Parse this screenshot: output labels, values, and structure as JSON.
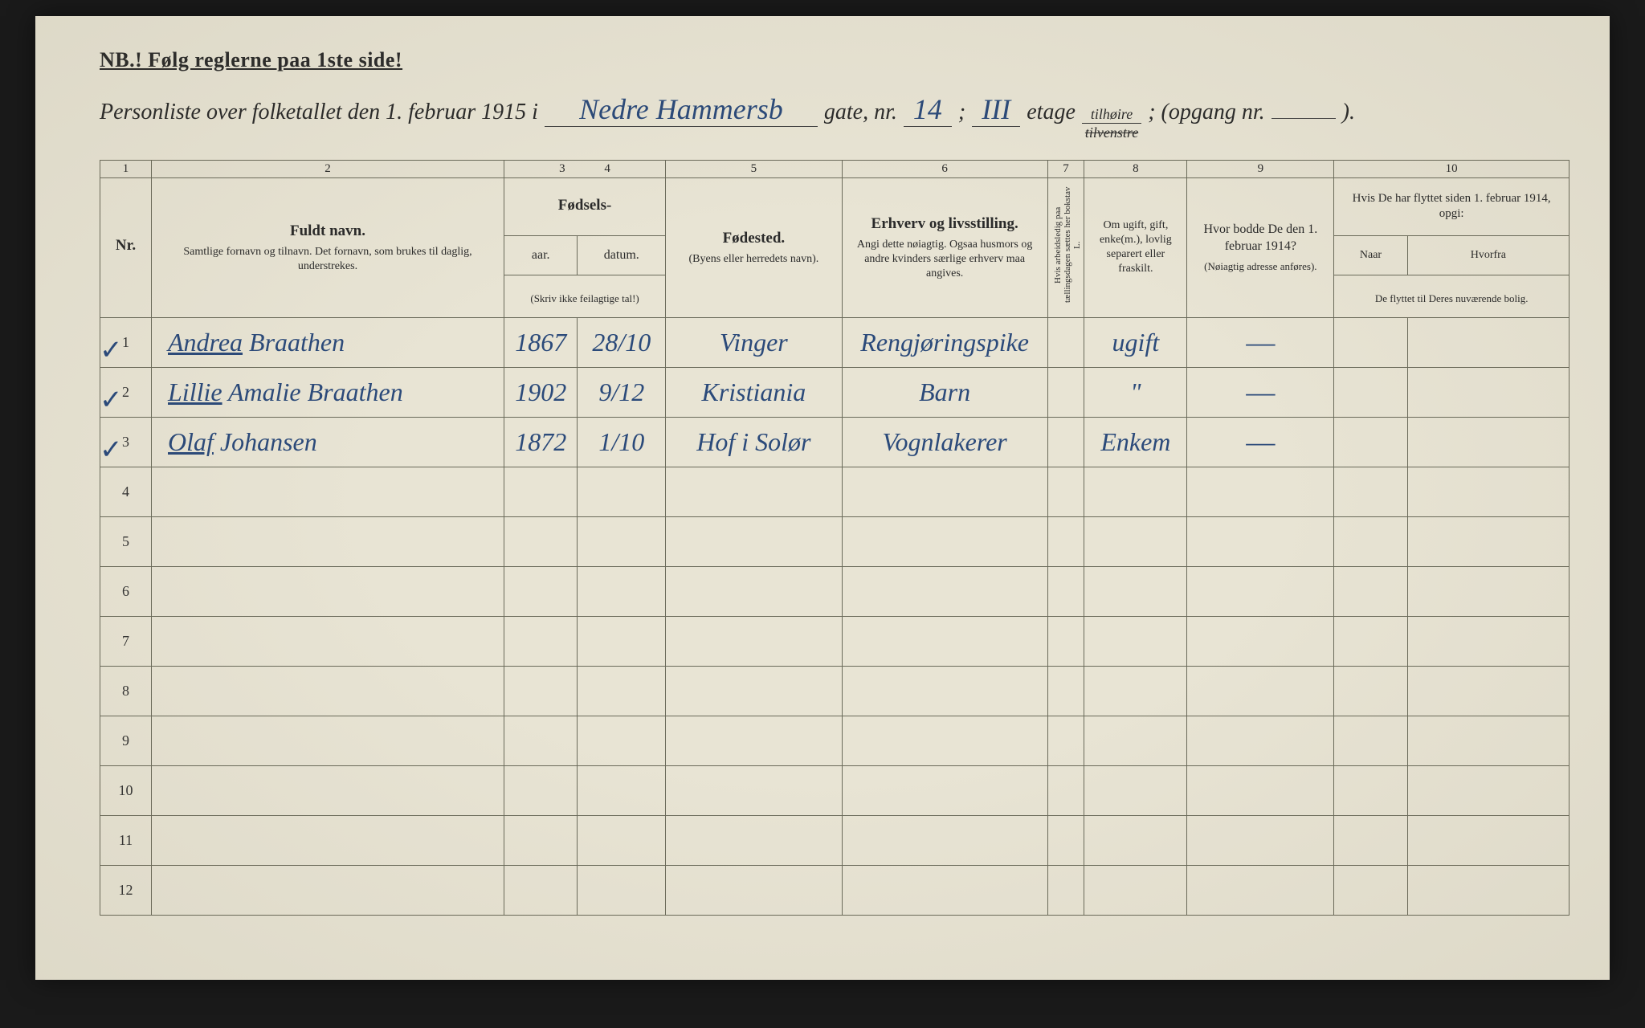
{
  "colors": {
    "paper": "#e8e4d4",
    "ink_print": "#2a2a2a",
    "ink_handwriting": "#2b4a7a",
    "rule_lines": "#6a6a5a",
    "background": "#1a1a1a"
  },
  "header": {
    "nb_line": "NB.! Følg reglerne paa 1ste side!",
    "title_prefix": "Personliste over folketallet den 1. februar 1915 i",
    "street": "Nedre Hammersb",
    "gate_label": "gate, nr.",
    "street_nr": "14",
    "semicolon": ";",
    "etage_value": "III",
    "etage_label": "etage",
    "fraction_top": "tilhøire",
    "fraction_bot": "tilvenstre",
    "opgang_label": "; (opgang nr.",
    "opgang_value": "",
    "closing": ")."
  },
  "columns": {
    "nums": [
      "1",
      "2",
      "3",
      "4",
      "5",
      "6",
      "7",
      "8",
      "9",
      "10"
    ],
    "c1": {
      "label": "Nr."
    },
    "c2": {
      "main": "Fuldt navn.",
      "sub": "Samtlige fornavn og tilnavn. Det fornavn, som brukes til daglig, understrekes."
    },
    "c34_group": "Fødsels-",
    "c3": {
      "label": "aar."
    },
    "c4": {
      "label": "datum."
    },
    "c34_note": "(Skriv ikke feilagtige tal!)",
    "c5": {
      "main": "Fødested.",
      "sub": "(Byens eller herredets navn)."
    },
    "c6": {
      "main": "Erhverv og livsstilling.",
      "sub": "Angi dette nøiagtig. Ogsaa husmors og andre kvinders særlige erhverv maa angives."
    },
    "c7": {
      "vertical": "Hvis arbeidsledig paa tællingsdagen sættes her bokstav L."
    },
    "c8": {
      "sub": "Om ugift, gift, enke(m.), lovlig separert eller fraskilt."
    },
    "c9": {
      "main": "Hvor bodde De den 1. februar 1914?",
      "sub": "(Nøiagtig adresse anføres)."
    },
    "c10": {
      "main": "Hvis De har flyttet siden 1. februar 1914, opgi:",
      "a": "Naar",
      "b": "Hvorfra",
      "note": "De flyttet til Deres nuværende bolig."
    }
  },
  "rows": [
    {
      "nr": "1",
      "check": true,
      "name": "Andrea Braathen",
      "name_underline": "Andrea",
      "year": "1867",
      "date": "28/10",
      "birthplace": "Vinger",
      "occupation": "Rengjøringspike",
      "col7": "",
      "marital": "ugift",
      "addr1914": "—",
      "moved_when": "",
      "moved_from": ""
    },
    {
      "nr": "2",
      "check": true,
      "name": "Lillie Amalie Braathen",
      "name_underline": "Lillie",
      "year": "1902",
      "date": "9/12",
      "birthplace": "Kristiania",
      "occupation": "Barn",
      "col7": "",
      "marital": "\"",
      "addr1914": "—",
      "moved_when": "",
      "moved_from": ""
    },
    {
      "nr": "3",
      "check": true,
      "name": "Olaf Johansen",
      "name_underline": "Olaf",
      "year": "1872",
      "date": "1/10",
      "birthplace": "Hof i Solør",
      "occupation": "Vognlakerer",
      "col7": "",
      "marital": "Enkem",
      "addr1914": "—",
      "moved_when": "",
      "moved_from": ""
    }
  ],
  "empty_row_numbers": [
    "4",
    "5",
    "6",
    "7",
    "8",
    "9",
    "10",
    "11",
    "12"
  ]
}
